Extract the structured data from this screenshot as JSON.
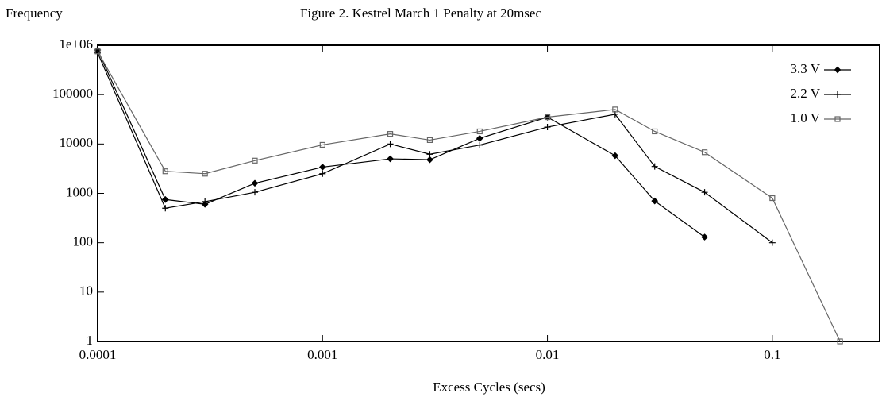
{
  "chart_data": {
    "type": "line",
    "title": "Figure 2. Kestrel March 1 Penalty at 20msec",
    "y_label": "Frequency",
    "x_label": "Excess Cycles (secs)",
    "log_x": true,
    "log_y": true,
    "legend": "top-right",
    "x": [
      0.0001,
      0.0002,
      0.0003,
      0.0005,
      0.001,
      0.002,
      0.003,
      0.005,
      0.01,
      0.02,
      0.03,
      0.05,
      0.1,
      0.2
    ],
    "series": [
      {
        "name": "3.3 V",
        "color": "#000000",
        "marker": "diamond",
        "values": [
          800000,
          750,
          600,
          1600,
          3400,
          5000,
          4800,
          13000,
          35000,
          5800,
          700,
          130,
          null,
          null
        ]
      },
      {
        "name": "2.2 V",
        "color": "#000000",
        "marker": "plus",
        "values": [
          700000,
          500,
          680,
          1050,
          2500,
          10000,
          6200,
          9500,
          22000,
          40000,
          3500,
          1050,
          100,
          null
        ]
      },
      {
        "name": "1.0 V",
        "color": "#666666",
        "marker": "square",
        "values": [
          750000,
          2800,
          2500,
          4600,
          9600,
          16000,
          12000,
          18000,
          35000,
          50000,
          18000,
          6800,
          800,
          1
        ]
      }
    ],
    "xlim": [
      0.0001,
      0.3
    ],
    "xticks": [
      0.0001,
      0.001,
      0.01,
      0.1
    ],
    "ylim": [
      1,
      1000000
    ],
    "yticks": [
      1,
      10,
      100,
      1000,
      10000,
      100000,
      {
        "value": 1000000,
        "label": "1e+06"
      }
    ]
  }
}
